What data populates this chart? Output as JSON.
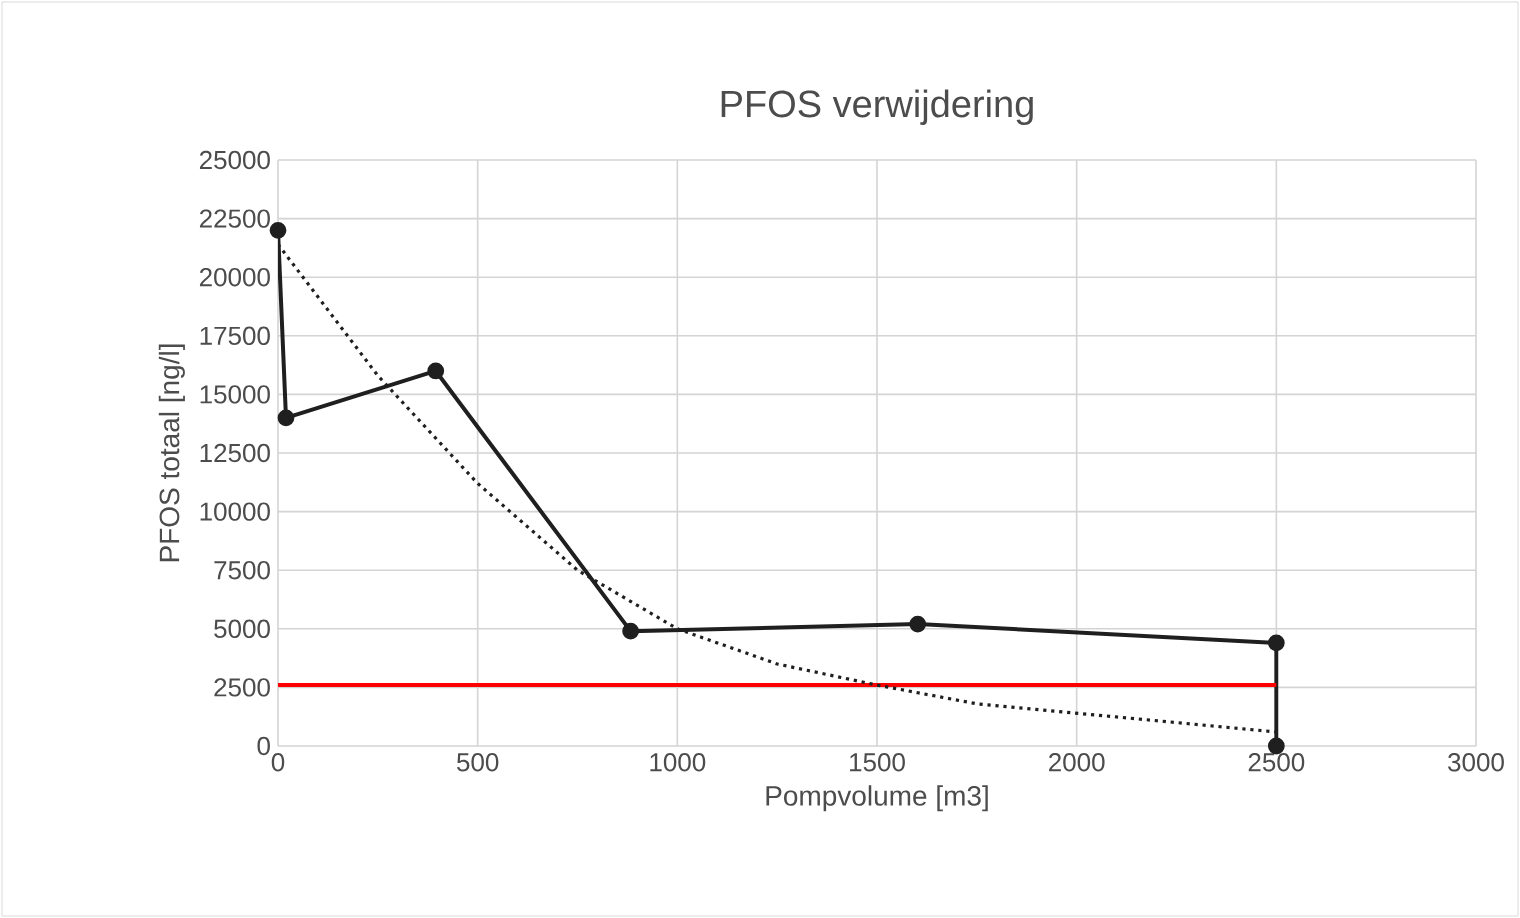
{
  "chart_data": {
    "type": "line",
    "title": "PFOS verwijdering",
    "xlabel": "Pompvolume  [m3]",
    "ylabel": "PFOS totaal [ng/l]",
    "xlim": [
      0,
      3000
    ],
    "xticks": [
      0,
      500,
      1000,
      1500,
      2000,
      2500,
      3000
    ],
    "ylim": [
      0,
      25000
    ],
    "yticks": [
      0,
      2500,
      5000,
      7500,
      10000,
      12500,
      15000,
      17500,
      20000,
      22500,
      25000
    ],
    "grid": true,
    "series": [
      {
        "color": "#1f1f1f",
        "marker": "circle",
        "line_style": "solid",
        "x": [
          0,
          20,
          395,
          883,
          1602,
          2500,
          2500
        ],
        "values": [
          22000,
          14000,
          16000,
          4900,
          5200,
          4400,
          0
        ]
      },
      {
        "color": "#ff0000",
        "marker": "none",
        "line_style": "solid",
        "x": [
          0,
          2500
        ],
        "values": [
          2600,
          2600
        ]
      },
      {
        "color": "#1f1f1f",
        "marker": "none",
        "line_style": "dotted",
        "x": [
          0,
          250,
          500,
          750,
          1000,
          1250,
          1500,
          1750,
          2000,
          2250,
          2500
        ],
        "values": [
          21400,
          15800,
          11200,
          7500,
          5000,
          3500,
          2600,
          1800,
          1400,
          1000,
          600
        ]
      }
    ]
  }
}
